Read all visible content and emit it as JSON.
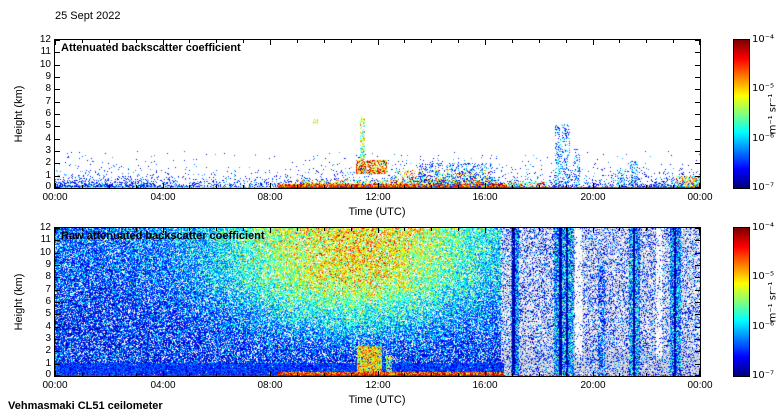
{
  "figure": {
    "date": "25 Sept 2022",
    "footer": "Vehmasmaki CL51 ceilometer",
    "background": "#ffffff"
  },
  "chart_data": [
    {
      "type": "heatmap",
      "title": "Attenuated backscatter coefficient",
      "xlabel": "Time (UTC)",
      "ylabel": "Height (km)",
      "xlim_hours": [
        0,
        24
      ],
      "ylim_km": [
        0,
        12
      ],
      "x_major_tick_hours": [
        0,
        4,
        8,
        12,
        16,
        20,
        24
      ],
      "x_tick_labels": [
        "00:00",
        "04:00",
        "08:00",
        "12:00",
        "16:00",
        "20:00",
        "00:00"
      ],
      "x_minor_tick_step_hours": 1,
      "y_tick_labels": [
        "0",
        "1",
        "2",
        "3",
        "4",
        "5",
        "6",
        "7",
        "8",
        "9",
        "10",
        "11",
        "12"
      ],
      "colorbar": {
        "label": "m⁻¹ sr⁻¹",
        "tick_labels": [
          "10⁻⁴",
          "10⁻⁵",
          "10⁻⁶",
          "10⁻⁷"
        ],
        "scale": "log",
        "colormap": "jet",
        "value_mapping": "v=0 is 10⁻⁷, v=1 is 10⁻⁴ m⁻¹ sr⁻¹"
      },
      "render": {
        "kind": "top",
        "seed": 20220925,
        "base": {
          "max_h": 3,
          "d1": 0.92,
          "k1": 0.32,
          "d2": 0.22,
          "k2": 1.0,
          "v": [
            0.05,
            0.34
          ],
          "vpow": 1.3,
          "mod_a": 0.8,
          "mod_b": 0.25,
          "mod_f": 0.5,
          "mod_p": 1.2
        },
        "features": [
          {
            "t": [
              0,
              8.3
            ],
            "h": [
              0,
              0.12
            ],
            "density": 0.85,
            "v": [
              0.3,
              0.8
            ]
          },
          {
            "t": [
              8.3,
              16.8
            ],
            "h": [
              0,
              0.3
            ],
            "density": 0.9,
            "v": [
              0.6,
              1.0
            ]
          },
          {
            "t": [
              9.0,
              16.5
            ],
            "h": [
              0.3,
              0.65
            ],
            "density": 0.35,
            "v": [
              0.35,
              0.85
            ]
          },
          {
            "t": [
              13.5,
              16.3
            ],
            "h": [
              0,
              2.0
            ],
            "density": 0.25,
            "v": [
              0.08,
              0.35
            ]
          },
          {
            "t": [
              11.2,
              12.35
            ],
            "h": [
              1.1,
              2.3
            ],
            "density": 0.75,
            "v": [
              0.45,
              1.0
            ]
          },
          {
            "t": [
              11.35,
              11.52
            ],
            "h": [
              2.3,
              5.7
            ],
            "density": 0.55,
            "v": [
              0.3,
              0.8
            ]
          },
          {
            "t": [
              9.6,
              9.8
            ],
            "h": [
              5.2,
              5.6
            ],
            "density": 0.5,
            "v": [
              0.45,
              0.75
            ]
          },
          {
            "t": [
              12.6,
              16.2
            ],
            "h": [
              0.3,
              1.45
            ],
            "density": 0.2,
            "v": [
              0.4,
              0.95
            ]
          },
          {
            "t": [
              16.8,
              18.3
            ],
            "h": [
              0,
              0.5
            ],
            "density": 0.45,
            "v": [
              0.3,
              0.9
            ]
          },
          {
            "t": [
              18.6,
              19.15
            ],
            "h": [
              0.2,
              5.2
            ],
            "density": 0.3,
            "v": [
              0.08,
              0.42
            ]
          },
          {
            "t": [
              19.3,
              19.55
            ],
            "h": [
              0.2,
              3.2
            ],
            "density": 0.25,
            "v": [
              0.08,
              0.35
            ]
          },
          {
            "t": [
              20.9,
              21.2
            ],
            "h": [
              0,
              1.5
            ],
            "density": 0.35,
            "v": [
              0.1,
              0.5
            ]
          },
          {
            "t": [
              21.4,
              21.7
            ],
            "h": [
              0,
              2.2
            ],
            "density": 0.35,
            "v": [
              0.1,
              0.5
            ]
          },
          {
            "t": [
              23.1,
              24
            ],
            "h": [
              0,
              1.0
            ],
            "density": 0.55,
            "v": [
              0.3,
              0.9
            ]
          },
          {
            "t": [
              8.3,
              24
            ],
            "h": [
              0,
              0.1
            ],
            "density": 0.97,
            "v": [
              0.8,
              1.0
            ]
          }
        ]
      }
    },
    {
      "type": "heatmap",
      "title": "Raw attenuated backscatter coefficient",
      "xlabel": "Time (UTC)",
      "ylabel": "Height (km)",
      "xlim_hours": [
        0,
        24
      ],
      "ylim_km": [
        0,
        12
      ],
      "x_major_tick_hours": [
        0,
        4,
        8,
        12,
        16,
        20,
        24
      ],
      "x_tick_labels": [
        "00:00",
        "04:00",
        "08:00",
        "12:00",
        "16:00",
        "20:00",
        "00:00"
      ],
      "x_minor_tick_step_hours": 1,
      "y_tick_labels": [
        "0",
        "1",
        "2",
        "3",
        "4",
        "5",
        "6",
        "7",
        "8",
        "9",
        "10",
        "11",
        "12"
      ],
      "colorbar": {
        "label": "m⁻¹ sr⁻¹",
        "tick_labels": [
          "10⁻⁴",
          "10⁻⁵",
          "10⁻⁶",
          "10⁻⁷"
        ],
        "scale": "log",
        "colormap": "jet",
        "value_mapping": "v=0 is 10⁻⁷, v=1 is 10⁻⁴ m⁻¹ sr⁻¹"
      },
      "render": {
        "kind": "raw",
        "seed": 925,
        "base": {
          "density": 0.82,
          "v_min": 0.03,
          "v_span": 0.33,
          "v_pow": 1.6,
          "bump_amp": 0.58,
          "bump_t_center": 11.2,
          "bump_t_sigma": 4.8,
          "bump_h_start": 1.5,
          "bump_h_span": 6.5,
          "alt_amp": 0.12,
          "alt_h_start": 5,
          "alt_h_span": 7,
          "outlier_p": 0.03,
          "outlier_add": 0.18,
          "stripe_t_start": 16.6,
          "stripe_colored_density": 0.3,
          "stripe_v": [
            0.02,
            0.32
          ],
          "stripe_gray_density": 0.5,
          "stripe_gray_low_add": 0.3,
          "gray_rgb": [
            208,
            208,
            214
          ]
        },
        "features": [
          {
            "t": [
              0,
              16.7
            ],
            "h": [
              0,
              1.05
            ],
            "density": 0.95,
            "v": [
              0.07,
              0.28
            ]
          },
          {
            "t": [
              11.25,
              12.15
            ],
            "h": [
              0,
              2.4
            ],
            "density": 0.9,
            "v": [
              0.45,
              0.85
            ]
          },
          {
            "t": [
              12.3,
              12.55
            ],
            "h": [
              0,
              1.6
            ],
            "density": 0.7,
            "v": [
              0.35,
              0.7
            ]
          },
          {
            "t": [
              16.95,
              17.25
            ],
            "h": [
              0,
              12
            ],
            "density": 0.85,
            "v": [
              0.05,
              0.45
            ]
          },
          {
            "t": [
              17.02,
              17.1
            ],
            "h": [
              0,
              12
            ],
            "density": 0.95,
            "v": [
              0.0,
              0.08
            ]
          },
          {
            "t": [
              18.55,
              19.3
            ],
            "h": [
              0,
              12
            ],
            "density": 0.8,
            "v": [
              0.05,
              0.5
            ]
          },
          {
            "t": [
              18.75,
              18.85
            ],
            "h": [
              0,
              12
            ],
            "density": 0.95,
            "v": [
              0.0,
              0.08
            ]
          },
          {
            "t": [
              19.02,
              19.1
            ],
            "h": [
              0,
              12
            ],
            "density": 0.9,
            "v": [
              0.0,
              0.08
            ]
          },
          {
            "t": [
              19.35,
              19.6
            ],
            "h": [
              1.5,
              12
            ],
            "density": 0.75,
            "clear": true,
            "v": [
              0,
              0
            ]
          },
          {
            "t": [
              20.2,
              20.45
            ],
            "h": [
              0,
              9
            ],
            "density": 0.5,
            "v": [
              0.04,
              0.35
            ]
          },
          {
            "t": [
              21.35,
              21.78
            ],
            "h": [
              0,
              12
            ],
            "density": 0.8,
            "v": [
              0.05,
              0.5
            ]
          },
          {
            "t": [
              21.52,
              21.6
            ],
            "h": [
              0,
              12
            ],
            "density": 0.95,
            "v": [
              0.0,
              0.08
            ]
          },
          {
            "t": [
              22.35,
              22.6
            ],
            "h": [
              1.5,
              12
            ],
            "density": 0.7,
            "clear": true,
            "v": [
              0,
              0
            ]
          },
          {
            "t": [
              22.9,
              23.3
            ],
            "h": [
              0,
              12
            ],
            "density": 0.75,
            "v": [
              0.05,
              0.45
            ]
          },
          {
            "t": [
              23.02,
              23.1
            ],
            "h": [
              0,
              12
            ],
            "density": 0.9,
            "v": [
              0.0,
              0.08
            ]
          },
          {
            "t": [
              8.3,
              16.7
            ],
            "h": [
              0,
              0.35
            ],
            "density": 0.95,
            "v": [
              0.6,
              1.0
            ]
          },
          {
            "t": [
              0,
              16.7
            ],
            "h": [
              0,
              0.12
            ],
            "density": 0.97,
            "v": [
              0.82,
              1.0
            ]
          },
          {
            "t": [
              16.7,
              24
            ],
            "h": [
              0,
              0.12
            ],
            "density": 0.7,
            "v": [
              0.6,
              1.0
            ]
          }
        ]
      }
    }
  ]
}
